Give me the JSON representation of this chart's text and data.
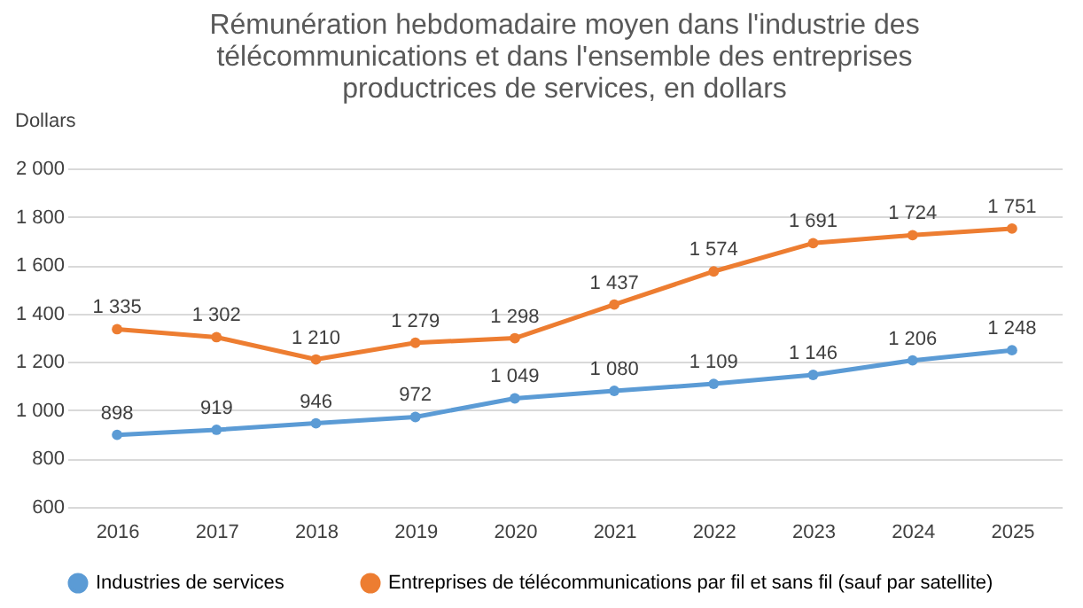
{
  "chart_data": {
    "type": "line",
    "title": [
      "Rémunération hebdomadaire moyen dans l'industrie des",
      "télécommunications et dans l'ensemble des entreprises",
      "productrices de services, en dollars"
    ],
    "ylabel": "Dollars",
    "categories": [
      "2016",
      "2017",
      "2018",
      "2019",
      "2020",
      "2021",
      "2022",
      "2023",
      "2024",
      "2025"
    ],
    "series": [
      {
        "name": "Industries de services",
        "color": "#5b9bd5",
        "values": [
          898,
          919,
          946,
          972,
          1049,
          1080,
          1109,
          1146,
          1206,
          1248
        ],
        "value_labels": [
          "898",
          "919",
          "946",
          "972",
          "1 049",
          "1 080",
          "1 109",
          "1 146",
          "1 206",
          "1 248"
        ]
      },
      {
        "name": "Entreprises de télécommunications par fil et sans fil (sauf par satellite)",
        "color": "#ed7d31",
        "values": [
          1335,
          1302,
          1210,
          1279,
          1298,
          1437,
          1574,
          1691,
          1724,
          1751
        ],
        "value_labels": [
          "1 335",
          "1 302",
          "1 210",
          "1 279",
          "1 298",
          "1 437",
          "1 574",
          "1 691",
          "1 724",
          "1 751"
        ]
      }
    ],
    "ylim": [
      600,
      2000
    ],
    "yticks": [
      600,
      800,
      {
        "value": 1000,
        "label": "1 000"
      },
      {
        "value": 1200,
        "label": "1 200"
      },
      {
        "value": 1400,
        "label": "1 400"
      },
      {
        "value": 1600,
        "label": "1 600"
      },
      {
        "value": 1800,
        "label": "1 800"
      },
      {
        "value": 2000,
        "label": "2 000"
      }
    ],
    "grid": "y",
    "legend": "bottom",
    "marker": "circle",
    "line_style": "solid"
  }
}
